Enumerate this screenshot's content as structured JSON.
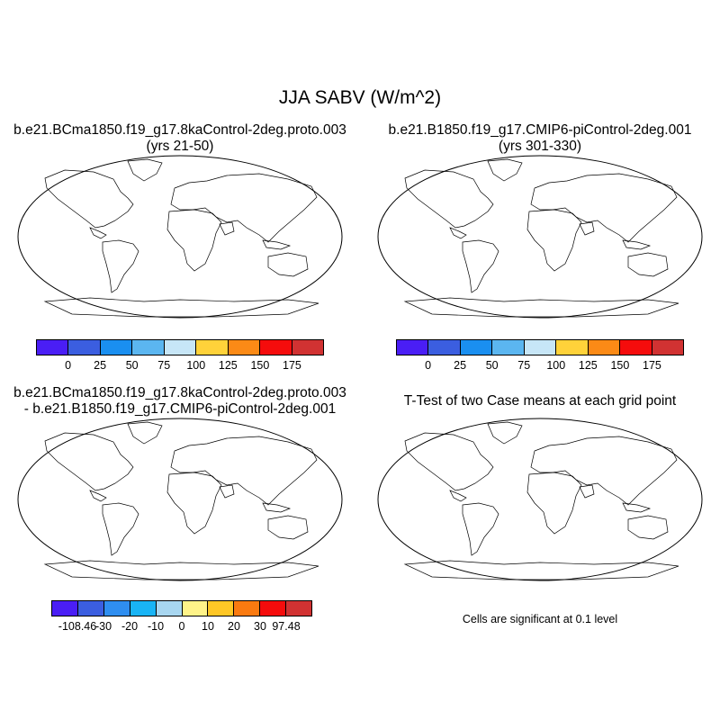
{
  "figure": {
    "title": "JJA SABV (W/m^2)"
  },
  "panels": {
    "p1": {
      "title": "b.e21.BCma1850.f19_g17.8kaControl-2deg.proto.003",
      "subtitle": "(yrs 21-50)"
    },
    "p2": {
      "title": "b.e21.B1850.f19_g17.CMIP6-piControl-2deg.001",
      "subtitle": "(yrs 301-330)"
    },
    "p3": {
      "title": "b.e21.BCma1850.f19_g17.8kaControl-2deg.proto.003",
      "subtitle": "- b.e21.B1850.f19_g17.CMIP6-piControl-2deg.001"
    },
    "p4": {
      "title": "T-Test of two Case means at each grid point",
      "note": "Cells are significant at 0.1 level"
    }
  },
  "colorbars": {
    "abs": {
      "colors": [
        "#4a1ef5",
        "#3b5ee0",
        "#1a8ff0",
        "#5bb6f0",
        "#c7e6f7",
        "#ffd23a",
        "#fb8a16",
        "#f50c0c",
        "#d13232"
      ],
      "labels": [
        "0",
        "25",
        "50",
        "75",
        "100",
        "125",
        "150",
        "175"
      ]
    },
    "diff": {
      "colors": [
        "#4a1ef5",
        "#3b5ee0",
        "#2f8ef0",
        "#19b4f5",
        "#a8d6f0",
        "#fff389",
        "#ffc726",
        "#fa7a10",
        "#f50c0c",
        "#d13232"
      ],
      "labels": [
        "-108.46",
        "-30",
        "-20",
        "-10",
        "0",
        "10",
        "20",
        "30",
        "97.48"
      ]
    }
  },
  "map_colors": {
    "ocean": "#ffffff",
    "coast": "#000000",
    "significant": "#ee0000"
  }
}
